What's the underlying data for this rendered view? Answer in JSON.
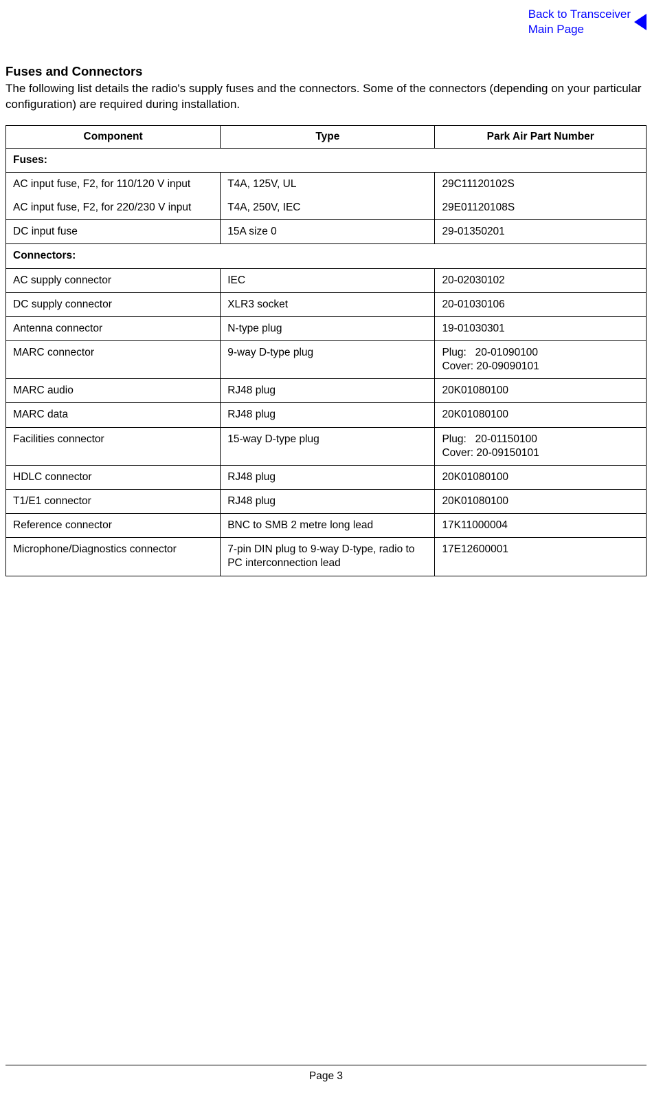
{
  "nav": {
    "back_line1": "Back to Transceiver",
    "back_line2": "Main Page"
  },
  "heading": "Fuses and Connectors",
  "intro": "The following list details the radio's supply fuses and the connectors. Some of the connectors (depending on your particular configuration) are required during installation.",
  "table": {
    "headers": {
      "component": "Component",
      "type": "Type",
      "part": "Park Air Part Number"
    },
    "fuses_label": "Fuses:",
    "connectors_label": "Connectors:",
    "ac_fuse_row": {
      "comp_a": "AC input fuse, F2, for 110/120 V input",
      "comp_b": "AC input fuse, F2, for 220/230 V input",
      "type_a": "T4A, 125V, UL",
      "type_b": "T4A, 250V, IEC",
      "part_a": "29C11120102S",
      "part_b": "29E01120108S"
    },
    "dc_fuse": {
      "comp": "DC input fuse",
      "type": "15A size 0",
      "part": "29-01350201"
    },
    "ac_supply": {
      "comp": "AC supply connector",
      "type": "IEC",
      "part": "20-02030102"
    },
    "dc_supply": {
      "comp": "DC supply connector",
      "type": "XLR3 socket",
      "part": "20-01030106"
    },
    "antenna": {
      "comp": "Antenna connector",
      "type": "N-type plug",
      "part": "19-01030301"
    },
    "marc_conn": {
      "comp": "MARC connector",
      "type": "9-way D-type plug",
      "part_a": "Plug:   20-01090100",
      "part_b": "Cover: 20-09090101"
    },
    "marc_audio": {
      "comp": "MARC audio",
      "type": "RJ48 plug",
      "part": "20K01080100"
    },
    "marc_data": {
      "comp": "MARC data",
      "type": "RJ48 plug",
      "part": "20K01080100"
    },
    "facilities": {
      "comp": "Facilities connector",
      "type": "15-way D-type plug",
      "part_a": "Plug:   20-01150100",
      "part_b": "Cover: 20-09150101"
    },
    "hdlc": {
      "comp": "HDLC connector",
      "type": "RJ48 plug",
      "part": "20K01080100"
    },
    "t1e1": {
      "comp": "T1/E1 connector",
      "type": "RJ48 plug",
      "part": "20K01080100"
    },
    "reference": {
      "comp": "Reference connector",
      "type": "BNC to SMB 2 metre long lead",
      "part": "17K11000004"
    },
    "mic_diag": {
      "comp": "Microphone/Diagnostics connector",
      "type": "7-pin DIN plug to 9-way D-type, radio to PC interconnection lead",
      "part": "17E12600001"
    }
  },
  "footer": {
    "page": "Page 3"
  }
}
